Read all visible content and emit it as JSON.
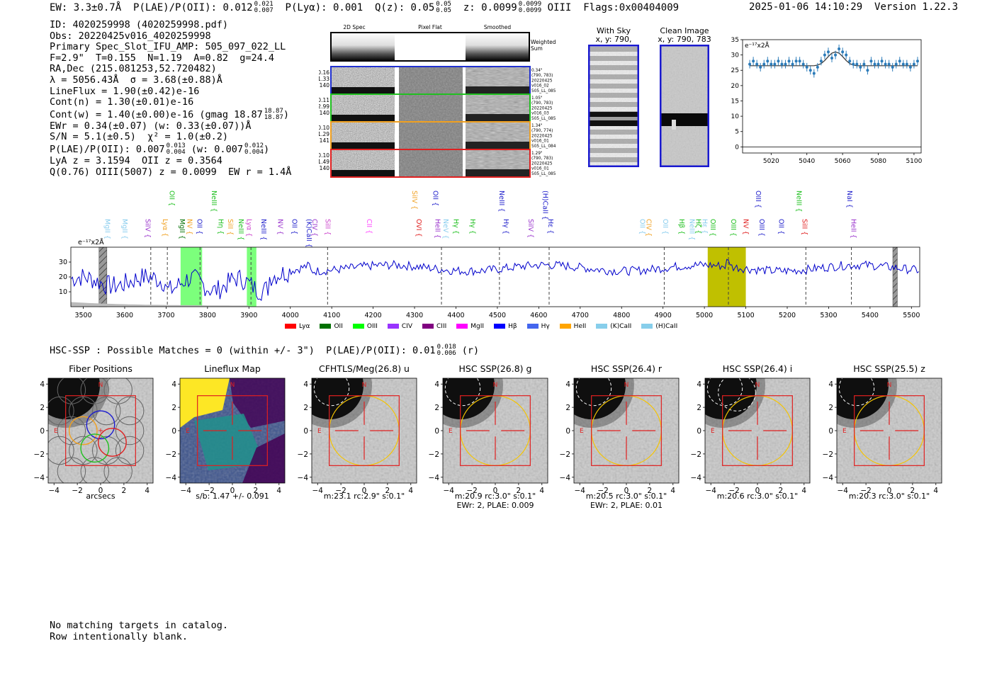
{
  "header": {
    "ew": "EW: 3.3±0.7Å",
    "plae_label": "P(LAE)/P(OII): 0.012",
    "plae_hi": "0.021",
    "plae_lo": "0.007",
    "plya": "P(Lyα): 0.001",
    "qz_label": "Q(z): 0.05",
    "qz_hi": "0.05",
    "qz_lo": "0.05",
    "z_label": "z: 0.0099",
    "z_hi": "0.0099",
    "z_lo": "0.0099",
    "line": "OIII",
    "flags": "Flags:0x00404009",
    "datetime": "2025-01-06 14:10:29",
    "version": "Version 1.22.3"
  },
  "info": {
    "id": "ID: 4020259998 (4020259998.pdf)",
    "obs": "Obs: 20220425v016_4020259998",
    "primary": "Primary Spec_Slot_IFU_AMP: 505_097_022_LL",
    "fiber": "F=2.9\"  T=0.155  N=1.19  A=0.82  g=24.4",
    "radec": "RA,Dec (215.081253,52.720482)",
    "lambda": "λ = 5056.43Å  σ = 3.68(±0.88)Å",
    "lineflux": "LineFlux = 1.90(±0.42)e-16",
    "contn": "Cont(n) = 1.30(±0.01)e-16",
    "contw": "Cont(w) = 1.40(±0.00)e-16 (gmag 18.87",
    "gmag_hi": "18.87",
    "gmag_lo": "18.87",
    "ewr": "EWr = 0.34(±0.07) (w: 0.33(±0.07))Å",
    "sn": "S/N = 5.1(±0.5)  χ² = 1.0(±0.2)",
    "plae": "P(LAE)/P(OII): 0.007",
    "plae_hi": "0.013",
    "plae_lo": "0.004",
    "plae_w": "(w: 0.007",
    "plae_w_hi": "0.012",
    "plae_w_lo": "0.004",
    "lya": "LyA z = 3.1594  OII z = 0.3564",
    "q": "Q(0.76) OIII(5007) z = 0.0099  EW r = 1.4Å"
  },
  "spec2d": {
    "col_titles": [
      "2D Spec",
      "Pixel Flat",
      "Smoothed"
    ],
    "weighted_sum": "Weighted\nSum",
    "rows": [
      {
        "left": [
          "0.16",
          "1.33",
          "140"
        ],
        "right": [
          "0.34\"",
          "(790, 783)",
          "20220425",
          "v016_02",
          "505_LL_085"
        ],
        "color": "#2030d0"
      },
      {
        "left": [
          "0.11",
          "2.99",
          "140"
        ],
        "right": [
          "1.05\"",
          "(790, 783)",
          "20220425",
          "v016_03",
          "505_LL_085"
        ],
        "color": "#20c020"
      },
      {
        "left": [
          "0.10",
          "1.29",
          "141"
        ],
        "right": [
          "1.34\"",
          "(790, 774)",
          "20220425",
          "v016_01",
          "505_LL_084"
        ],
        "color": "#f0a020"
      },
      {
        "left": [
          "0.10",
          "1.49",
          "140"
        ],
        "right": [
          "1.29\"",
          "(790, 783)",
          "20220425",
          "v016_01",
          "505_LL_085"
        ],
        "color": "#e02020"
      }
    ]
  },
  "sky": {
    "with_sky_title": "With Sky",
    "with_sky_sub": "x, y: 790, 783",
    "clean_title": "Clean Image",
    "clean_sub": "x, y: 790, 783"
  },
  "chart_data": [
    {
      "type": "line",
      "title": "",
      "unit": "e⁻¹⁷x2Å",
      "x": [
        5008,
        5010,
        5012,
        5014,
        5016,
        5018,
        5020,
        5022,
        5024,
        5026,
        5028,
        5030,
        5032,
        5034,
        5036,
        5038,
        5040,
        5042,
        5044,
        5046,
        5048,
        5050,
        5052,
        5054,
        5056,
        5058,
        5060,
        5062,
        5064,
        5066,
        5068,
        5070,
        5072,
        5074,
        5076,
        5078,
        5080,
        5082,
        5084,
        5086,
        5088,
        5090,
        5092,
        5094,
        5096,
        5098,
        5100,
        5102
      ],
      "y": [
        27,
        28,
        27,
        26,
        27,
        28,
        27,
        27,
        28,
        27,
        27,
        28,
        27,
        28,
        28,
        27,
        26,
        25,
        24,
        26,
        28,
        30,
        31,
        29,
        30,
        32,
        31,
        30,
        28,
        27,
        27,
        26,
        27,
        25,
        28,
        27,
        27,
        28,
        27,
        27,
        26,
        27,
        28,
        27,
        27,
        26,
        27,
        28
      ],
      "fit_y": [
        26.5,
        26.5,
        26.5,
        26.5,
        26.5,
        26.5,
        26.5,
        26.5,
        26.5,
        26.5,
        26.5,
        26.5,
        26.5,
        26.5,
        26.5,
        26.5,
        26.5,
        26.5,
        26.5,
        26.7,
        27.2,
        28.2,
        29.5,
        30.6,
        31.0,
        30.6,
        29.5,
        28.2,
        27.2,
        26.7,
        26.5,
        26.5,
        26.5,
        26.5,
        26.5,
        26.5,
        26.5,
        26.5,
        26.5,
        26.5,
        26.5,
        26.5,
        26.5,
        26.5,
        26.5,
        26.5,
        26.5,
        26.5
      ],
      "xlim": [
        5004,
        5104
      ],
      "ylim": [
        -2,
        35
      ],
      "xticks": [
        5020,
        5040,
        5060,
        5080,
        5100
      ],
      "yticks": [
        0,
        5,
        10,
        15,
        20,
        25,
        30,
        35
      ]
    },
    {
      "type": "line",
      "title": "",
      "unit": "e⁻¹⁷x2Å",
      "xlim": [
        3470,
        5520
      ],
      "ylim": [
        0,
        40
      ],
      "xticks": [
        3500,
        3600,
        3700,
        3800,
        3900,
        4000,
        4100,
        4200,
        4300,
        4400,
        4500,
        4600,
        4700,
        4800,
        4900,
        5000,
        5100,
        5200,
        5300,
        5400,
        5500
      ],
      "yticks": [
        10,
        20,
        30
      ],
      "bands": [
        {
          "x0": 3735,
          "x1": 3787,
          "color": "#7cff7c"
        },
        {
          "x0": 3895,
          "x1": 3918,
          "color": "#7cff7c"
        },
        {
          "x0": 5008,
          "x1": 5100,
          "color": "#c0c000"
        }
      ],
      "hatched": [
        {
          "x0": 3538,
          "x1": 3557
        },
        {
          "x0": 5455,
          "x1": 5466
        }
      ],
      "dashed_lines": [
        3663,
        3703,
        3782,
        3905,
        4090,
        4365,
        4505,
        4625,
        4903,
        5058,
        5245,
        5355
      ],
      "lines": [
        {
          "x": 3548,
          "label": "MgII",
          "color": "#88ccee",
          "row": 2
        },
        {
          "x": 3590,
          "label": "MgII",
          "color": "#88ccee",
          "row": 2
        },
        {
          "x": 3645,
          "label": "SiIV",
          "color": "#9933cc",
          "row": 2
        },
        {
          "x": 3687,
          "label": "Lyα",
          "color": "#f0a020",
          "row": 2
        },
        {
          "x": 3704,
          "label": "OII",
          "color": "#20c020",
          "row": 1
        },
        {
          "x": 3728,
          "label": "MgII",
          "color": "#007000",
          "row": 2
        },
        {
          "x": 3746,
          "label": "NV",
          "color": "#f0a020",
          "row": 2
        },
        {
          "x": 3770,
          "label": "OII",
          "color": "#2222cc",
          "row": 2
        },
        {
          "x": 3805,
          "label": "NeIII",
          "color": "#20c020",
          "row": 1
        },
        {
          "x": 3822,
          "label": "Hη",
          "color": "#20c020",
          "row": 2
        },
        {
          "x": 3845,
          "label": "SiII",
          "color": "#f0a020",
          "row": 2
        },
        {
          "x": 3870,
          "label": "NeIII",
          "color": "#20c020",
          "row": 2
        },
        {
          "x": 3890,
          "label": "Lyα",
          "color": "#cc44cc",
          "row": 2
        },
        {
          "x": 3925,
          "label": "NeIII",
          "color": "#2222cc",
          "row": 2
        },
        {
          "x": 3965,
          "label": "NV",
          "color": "#9933cc",
          "row": 2
        },
        {
          "x": 4000,
          "label": "OII",
          "color": "#2222cc",
          "row": 2
        },
        {
          "x": 4035,
          "label": "(K)CaII",
          "color": "#2222cc",
          "row": 2
        },
        {
          "x": 4048,
          "label": "CIV",
          "color": "#9933cc",
          "row": 2
        },
        {
          "x": 4080,
          "label": "SiII",
          "color": "#cc44cc",
          "row": 2
        },
        {
          "x": 4180,
          "label": "CII",
          "color": "#ff44ff",
          "row": 2
        },
        {
          "x": 4290,
          "label": "SiIV",
          "color": "#f0a020",
          "row": 1
        },
        {
          "x": 4300,
          "label": "OVI",
          "color": "#e02020",
          "row": 2
        },
        {
          "x": 4340,
          "label": "OII",
          "color": "#2222cc",
          "row": 1
        },
        {
          "x": 4345,
          "label": "HeII",
          "color": "#9933cc",
          "row": 2
        },
        {
          "x": 4365,
          "label": "NeV",
          "color": "#88ccee",
          "row": 2
        },
        {
          "x": 4390,
          "label": "Hγ",
          "color": "#20c020",
          "row": 2
        },
        {
          "x": 4430,
          "label": "Hγ",
          "color": "#20c020",
          "row": 2
        },
        {
          "x": 4500,
          "label": "NeIII",
          "color": "#2222cc",
          "row": 1
        },
        {
          "x": 4510,
          "label": "Hγ",
          "color": "#2222cc",
          "row": 2
        },
        {
          "x": 4570,
          "label": "SiIV",
          "color": "#9933cc",
          "row": 2
        },
        {
          "x": 4605,
          "label": "(H)CaII",
          "color": "#2222cc",
          "row": 1
        },
        {
          "x": 4618,
          "label": "Hε",
          "color": "#2222cc",
          "row": 2
        },
        {
          "x": 4840,
          "label": "OII",
          "color": "#88ccee",
          "row": 2
        },
        {
          "x": 4855,
          "label": "CIV",
          "color": "#f0a020",
          "row": 2
        },
        {
          "x": 4895,
          "label": "OII",
          "color": "#88ccee",
          "row": 2
        },
        {
          "x": 4935,
          "label": "Hβ",
          "color": "#20c020",
          "row": 2
        },
        {
          "x": 4960,
          "label": "NeIII",
          "color": "#88ccee",
          "row": 2
        },
        {
          "x": 4975,
          "label": "Hζ",
          "color": "#20c020",
          "row": 2
        },
        {
          "x": 4990,
          "label": "Hε",
          "color": "#88ccee",
          "row": 2
        },
        {
          "x": 5010,
          "label": "OIII",
          "color": "#20c020",
          "row": 2
        },
        {
          "x": 5060,
          "label": "OIII",
          "color": "#20c020",
          "row": 2
        },
        {
          "x": 5090,
          "label": "NV",
          "color": "#e02020",
          "row": 2
        },
        {
          "x": 5120,
          "label": "OIII",
          "color": "#2222cc",
          "row": 1
        },
        {
          "x": 5128,
          "label": "OIII",
          "color": "#2222cc",
          "row": 2
        },
        {
          "x": 5175,
          "label": "OII",
          "color": "#2222cc",
          "row": 2
        },
        {
          "x": 5218,
          "label": "NeIII",
          "color": "#20c020",
          "row": 1
        },
        {
          "x": 5232,
          "label": "SiII",
          "color": "#e02020",
          "row": 2
        },
        {
          "x": 5340,
          "label": "NaI",
          "color": "#2222cc",
          "row": 1
        },
        {
          "x": 5350,
          "label": "HeII",
          "color": "#9933cc",
          "row": 2
        }
      ],
      "legend": [
        {
          "label": "Lyα",
          "color": "#ff0000"
        },
        {
          "label": "OII",
          "color": "#007000"
        },
        {
          "label": "OIII",
          "color": "#00ff00"
        },
        {
          "label": "CIV",
          "color": "#9933ff"
        },
        {
          "label": "CIII",
          "color": "#800080"
        },
        {
          "label": "MgII",
          "color": "#ff00ff"
        },
        {
          "label": "Hβ",
          "color": "#0000ff"
        },
        {
          "label": "Hγ",
          "color": "#4466ee"
        },
        {
          "label": "HeII",
          "color": "#ffa500"
        },
        {
          "label": "(K)CaII",
          "color": "#87ceeb"
        },
        {
          "label": "(H)CaII",
          "color": "#87ceeb"
        }
      ]
    }
  ],
  "hsc": {
    "summary": "HSC-SSP : Possible Matches = 0 (within +/- 3\")  P(LAE)/P(OII): 0.01",
    "sum_hi": "0.018",
    "sum_lo": "0.006",
    "sum_tail": "(r)",
    "panels": [
      {
        "title": "Fiber Positions",
        "caption": [
          "arcsecs"
        ],
        "type": "fiber"
      },
      {
        "title": "Lineflux Map",
        "caption": [
          "s/b: 1.47 +/- 0.091"
        ],
        "type": "lineflux"
      },
      {
        "title": "CFHTLS/Meg(26.8) u",
        "caption": [
          "m:23.1 rc:2.9\"  s:0.1\""
        ],
        "type": "img",
        "circ": 1
      },
      {
        "title": "HSC SSP(26.8) g",
        "caption": [
          "m:20.9 rc:3.0\"  s:0.1\"",
          "EWr: 2, PLAE: 0.009"
        ],
        "type": "img",
        "circ": 1
      },
      {
        "title": "HSC SSP(26.4) r",
        "caption": [
          "m:20.5 rc:3.0\"  s:0.1\"",
          "EWr: 2, PLAE: 0.01"
        ],
        "type": "img",
        "circ": 1
      },
      {
        "title": "HSC SSP(26.4) i",
        "caption": [
          "m:20.6 rc:3.0\"  s:0.1\""
        ],
        "type": "img",
        "circ": 2
      },
      {
        "title": "HSC SSP(25.5) z",
        "caption": [
          "m:20.3 rc:3.0\"  s:0.1\""
        ],
        "type": "img",
        "circ": 1
      }
    ],
    "ticks": [
      "−4",
      "−2",
      "0",
      "2",
      "4"
    ],
    "n": "N",
    "e": "E"
  },
  "footer": {
    "line1": "No matching targets in catalog.",
    "line2": "Row intentionally blank."
  }
}
